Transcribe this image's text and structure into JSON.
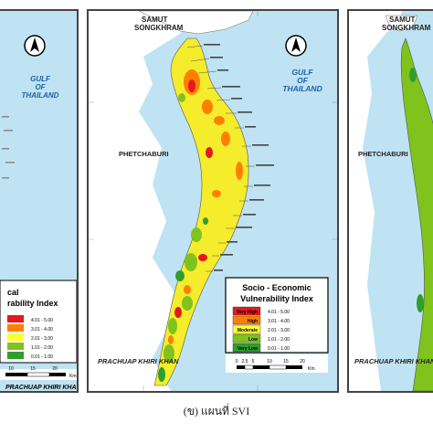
{
  "left_panel": {
    "sea_label_line1": "GULF",
    "sea_label_line2": "OF",
    "sea_label_line3": "THAILAND",
    "legend_title_line1": "cal",
    "legend_title_line2": "rability Index",
    "legend_ranges": [
      "4.01 - 5.00",
      "3.01 - 4.00",
      "2.01 - 3.00",
      "1.01 - 2.00",
      "0.01 - 1.00"
    ],
    "scale_ticks": [
      "10",
      "15",
      "20"
    ],
    "scale_unit": "Km.",
    "south_label": "PRACHUAP KHIRI KHA"
  },
  "center_panel": {
    "north_label": "SAMUT\nSONGKHRAM",
    "north_label_line1": "SAMUT",
    "north_label_line2": "SONGKHRAM",
    "sea_label_line1": "GULF",
    "sea_label_line2": "OF",
    "sea_label_line3": "THAILAND",
    "province_label": "PHETCHABURI",
    "legend_title_line1": "Socio - Economic",
    "legend_title_line2": "Vulnerability Index",
    "legend": [
      {
        "class": "Very High",
        "range": "4.01 - 5.00",
        "color": "#e31a1c"
      },
      {
        "class": "High",
        "range": "3.01 - 4.00",
        "color": "#ff7f00"
      },
      {
        "class": "Moderate",
        "range": "2.01 - 3.00",
        "color": "#ffff33"
      },
      {
        "class": "Low",
        "range": "1.01 - 2.00",
        "color": "#7fc31c"
      },
      {
        "class": "Very Low",
        "range": "0.01 - 1.00",
        "color": "#2e9e2e"
      }
    ],
    "scale_ticks": [
      "0",
      "2.5",
      "5",
      "10",
      "15",
      "20"
    ],
    "scale_unit": "Km.",
    "south_label": "PRACHUAP KHIRI KHAN"
  },
  "right_panel": {
    "north_label_line1": "SAMUT",
    "north_label_line2": "SONGKHRAM",
    "province_label": "PHETCHABURI",
    "south_label": "PRACHUAP KHIRI KHAN"
  },
  "colors": {
    "sea": "#bfe3f2",
    "land": "#ffffff",
    "border": "#444444",
    "coast_label": "#1f5fa8"
  },
  "caption": "(ข) แผนที่ SVI"
}
